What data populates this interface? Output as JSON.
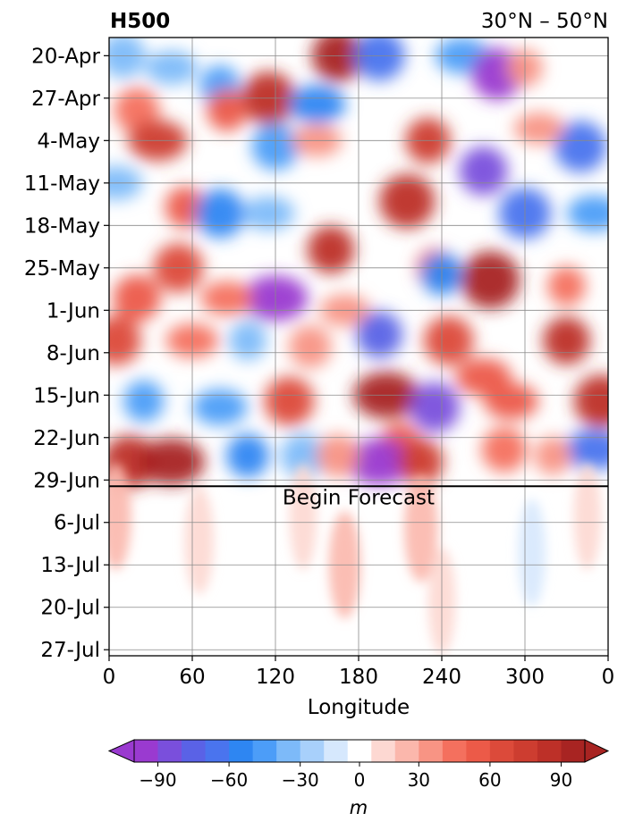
{
  "chart_data": {
    "type": "heatmap",
    "title": "H500",
    "subtitle": "30°N – 50°N",
    "xlabel": "Longitude",
    "x_ticks": [
      "0",
      "60",
      "120",
      "180",
      "240",
      "300",
      "0"
    ],
    "x_tick_values": [
      0,
      60,
      120,
      180,
      240,
      300,
      360
    ],
    "xlim": [
      0,
      360
    ],
    "y_ticks": [
      "20-Apr",
      "27-Apr",
      "4-May",
      "11-May",
      "18-May",
      "25-May",
      "1-Jun",
      "8-Jun",
      "15-Jun",
      "22-Jun",
      "29-Jun",
      "6-Jul",
      "13-Jul",
      "20-Jul",
      "27-Jul"
    ],
    "y_range_days_from_first_tick": [
      -3,
      99
    ],
    "forecast_start": "29-Jun",
    "annotation": "Begin Forecast",
    "grid": true,
    "colorbar": {
      "label": "m",
      "ticks": [
        "−90",
        "−60",
        "−30",
        "0",
        "30",
        "60",
        "90"
      ],
      "tick_values": [
        -90,
        -60,
        -30,
        0,
        30,
        60,
        90
      ],
      "levels": [
        -105,
        -90,
        -80,
        -70,
        -60,
        -50,
        -40,
        -30,
        -20,
        -10,
        10,
        20,
        30,
        40,
        50,
        60,
        70,
        80,
        90,
        105
      ],
      "colors": [
        "#9a3ad0",
        "#7a4fdc",
        "#5a62e6",
        "#4a74ee",
        "#2e86f2",
        "#4c9df8",
        "#7dbaf9",
        "#a8d0fb",
        "#d6e8fd",
        "#ffffff",
        "#fdd8d2",
        "#fbb7ac",
        "#f89484",
        "#f4705e",
        "#ec5a48",
        "#dc4a3a",
        "#cd3d30",
        "#bd3028",
        "#a82422"
      ],
      "extend": "both"
    },
    "anomalies": [
      {
        "lon": 165,
        "date": 0,
        "value": 100
      },
      {
        "lon": 195,
        "date": 0,
        "value": -65
      },
      {
        "lon": 255,
        "date": 0,
        "value": -50
      },
      {
        "lon": 280,
        "date": 3,
        "value": -100
      },
      {
        "lon": 10,
        "date": 0,
        "value": -40
      },
      {
        "lon": 45,
        "date": 2,
        "value": -40
      },
      {
        "lon": 80,
        "date": 5,
        "value": -50
      },
      {
        "lon": 115,
        "date": 7,
        "value": 80
      },
      {
        "lon": 150,
        "date": 8,
        "value": -60
      },
      {
        "lon": 300,
        "date": 2,
        "value": 30
      },
      {
        "lon": 20,
        "date": 9,
        "value": 40
      },
      {
        "lon": 35,
        "date": 14,
        "value": 70
      },
      {
        "lon": 85,
        "date": 9,
        "value": 50
      },
      {
        "lon": 120,
        "date": 15,
        "value": -50
      },
      {
        "lon": 150,
        "date": 14,
        "value": 30
      },
      {
        "lon": 230,
        "date": 14,
        "value": 70
      },
      {
        "lon": 340,
        "date": 15,
        "value": -70
      },
      {
        "lon": 310,
        "date": 12,
        "value": 30
      },
      {
        "lon": 270,
        "date": 19,
        "value": -85
      },
      {
        "lon": 300,
        "date": 26,
        "value": -70
      },
      {
        "lon": 5,
        "date": 21,
        "value": -40
      },
      {
        "lon": 55,
        "date": 25,
        "value": 50
      },
      {
        "lon": 80,
        "date": 26,
        "value": -60
      },
      {
        "lon": 115,
        "date": 26,
        "value": -40
      },
      {
        "lon": 160,
        "date": 32,
        "value": 80
      },
      {
        "lon": 215,
        "date": 24,
        "value": 85
      },
      {
        "lon": 350,
        "date": 26,
        "value": -50
      },
      {
        "lon": 235,
        "date": 35,
        "value": 40
      },
      {
        "lon": 50,
        "date": 35,
        "value": 60
      },
      {
        "lon": 120,
        "date": 40,
        "value": -95
      },
      {
        "lon": 240,
        "date": 36,
        "value": -55
      },
      {
        "lon": 275,
        "date": 37,
        "value": 100
      },
      {
        "lon": 170,
        "date": 42,
        "value": 30
      },
      {
        "lon": 330,
        "date": 38,
        "value": 40
      },
      {
        "lon": 20,
        "date": 40,
        "value": 50
      },
      {
        "lon": 85,
        "date": 40,
        "value": 40
      },
      {
        "lon": 195,
        "date": 46,
        "value": -75
      },
      {
        "lon": 245,
        "date": 47,
        "value": 60
      },
      {
        "lon": 270,
        "date": 53,
        "value": 55
      },
      {
        "lon": 330,
        "date": 47,
        "value": 80
      },
      {
        "lon": 5,
        "date": 47,
        "value": 60
      },
      {
        "lon": 60,
        "date": 47,
        "value": 40
      },
      {
        "lon": 100,
        "date": 47,
        "value": -40
      },
      {
        "lon": 145,
        "date": 48,
        "value": 30
      },
      {
        "lon": 200,
        "date": 56,
        "value": 100
      },
      {
        "lon": 235,
        "date": 58,
        "value": -90
      },
      {
        "lon": 130,
        "date": 57,
        "value": 60
      },
      {
        "lon": 80,
        "date": 58,
        "value": -50
      },
      {
        "lon": 25,
        "date": 57,
        "value": -50
      },
      {
        "lon": 355,
        "date": 57,
        "value": 80
      },
      {
        "lon": 290,
        "date": 57,
        "value": 50
      },
      {
        "lon": 210,
        "date": 64,
        "value": 50
      },
      {
        "lon": 15,
        "date": 67,
        "value": 80
      },
      {
        "lon": 45,
        "date": 67,
        "value": 100
      },
      {
        "lon": 100,
        "date": 66,
        "value": -60
      },
      {
        "lon": 140,
        "date": 66,
        "value": -40
      },
      {
        "lon": 195,
        "date": 67,
        "value": -100
      },
      {
        "lon": 225,
        "date": 67,
        "value": 70
      },
      {
        "lon": 285,
        "date": 65,
        "value": 40
      },
      {
        "lon": 350,
        "date": 65,
        "value": -70
      },
      {
        "lon": 320,
        "date": 66,
        "value": 35
      },
      {
        "lon": 165,
        "date": 66,
        "value": 30
      }
    ],
    "forecast_anomalies": [
      {
        "lon": 5,
        "date": 76,
        "value": 20
      },
      {
        "lon": 65,
        "date": 80,
        "value": 18
      },
      {
        "lon": 140,
        "date": 76,
        "value": 15
      },
      {
        "lon": 170,
        "date": 84,
        "value": 22
      },
      {
        "lon": 225,
        "date": 78,
        "value": 25
      },
      {
        "lon": 240,
        "date": 90,
        "value": 15
      },
      {
        "lon": 305,
        "date": 82,
        "value": -15
      },
      {
        "lon": 345,
        "date": 76,
        "value": 15
      }
    ]
  }
}
